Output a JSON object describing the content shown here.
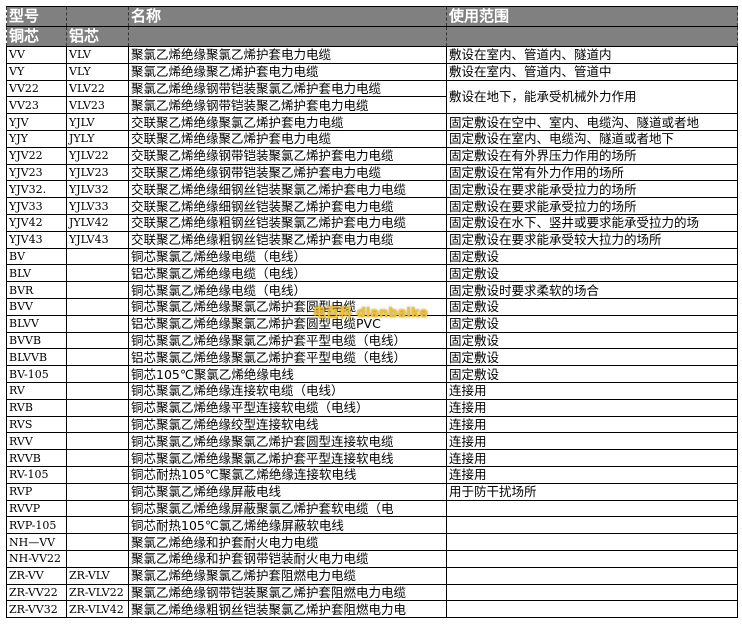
{
  "header": {
    "model": "型号",
    "name": "名称",
    "usage": "使用范围",
    "copper": "铜芯",
    "aluminum": "铝芯"
  },
  "watermark": "电百科 dianbaike",
  "rows": [
    {
      "cu": "VV",
      "al": "VLV",
      "name": "聚氯乙烯绝缘聚氯乙烯护套电力电缆",
      "use": "敷设在室内、管道内、隧道内"
    },
    {
      "cu": "VY",
      "al": "VLY",
      "name": "聚氯乙烯绝缘聚乙烯护套电力电缆",
      "use": "敷设在室内、管道内、管道中"
    },
    {
      "cu": "VV22",
      "al": "VLV22",
      "name": "聚氯乙烯绝缘钢带铠装聚氯乙烯护套电力电缆",
      "use": "敷设在地下，能承受机械外力作用",
      "span": 2
    },
    {
      "cu": "VV23",
      "al": "VLV23",
      "name": "聚氯乙烯绝缘钢带铠装聚乙烯护套电力电缆",
      "skip": true
    },
    {
      "cu": "YJV",
      "al": "YJLV",
      "name": "交联聚乙烯绝缘聚氯乙烯护套电力电缆",
      "use": "固定敷设在空中、室内、电缆沟、隧道或者地"
    },
    {
      "cu": "YJY",
      "al": "JYLY",
      "name": "交联聚乙烯绝缘聚乙烯护套电力电缆",
      "use": "固定敷设在室内、电缆沟、隧道或者地下"
    },
    {
      "cu": "YJV22",
      "al": "YJLV22",
      "name": "交联聚乙烯绝缘钢带铠装聚氯乙烯护套电力电缆",
      "use": "固定敷设在有外界压力作用的场所"
    },
    {
      "cu": "YJV23",
      "al": "YJLV23",
      "name": "交联聚乙烯绝缘钢带铠装聚乙烯护套电力电缆",
      "use": "固定敷设在常有外力作用的场所"
    },
    {
      "cu": "YJV32.",
      "al": "YJLV32",
      "name": "交联聚乙烯绝缘细钢丝铠装聚氯乙烯护套电力电缆",
      "use": "固定敷设在要求能承受拉力的场所"
    },
    {
      "cu": "YJV33",
      "al": "YJLV33",
      "name": "交联聚乙烯绝缘细钢丝铠装聚乙烯护套电力电缆",
      "use": "固定敷设在要求能承受拉力的场所"
    },
    {
      "cu": "YJV42",
      "al": "JYLV42",
      "name": "交联聚乙烯绝缘粗钢丝铠装聚氯乙烯护套电力电缆",
      "use": "固定敷设在水下、竖井或要求能承受拉力的场"
    },
    {
      "cu": "YJV43",
      "al": "YJLV43",
      "name": "交联聚乙烯绝缘粗钢丝铠装聚乙烯护套电力电缆",
      "use": "固定敷设在要求能承受较大拉力的场所"
    },
    {
      "cu": "BV",
      "al": "",
      "name": "铜芯聚氯乙烯绝缘电缆（电线）",
      "use": "固定敷设"
    },
    {
      "cu": "BLV",
      "al": "",
      "name": "铝芯聚氯乙烯绝缘电缆（电线）",
      "use": "固定敷设"
    },
    {
      "cu": "BVR",
      "al": "",
      "name": "铜芯聚氯乙烯绝缘电缆（电线）",
      "use": "固定敷设时要求柔软的场合"
    },
    {
      "cu": "BVV",
      "al": "",
      "name": "铜芯聚氯乙烯绝缘聚氯乙烯护套圆型电缆",
      "use": "固定敷设"
    },
    {
      "cu": "BLVV",
      "al": "",
      "name": "铝芯聚氯乙烯绝缘聚氯乙烯护套圆型电缆PVC",
      "use": "固定敷设"
    },
    {
      "cu": "BVVB",
      "al": "",
      "name": "铜芯聚氯乙烯绝缘聚氯乙烯护套平型电缆（电线）",
      "use": "固定敷设"
    },
    {
      "cu": "BLVVB",
      "al": "",
      "name": "铝芯聚氯乙烯绝缘聚氯乙烯护套平型电缆（电线）",
      "use": "固定敷设"
    },
    {
      "cu": "BV-105",
      "al": "",
      "name": "铜芯105℃聚氯乙烯绝缘电线",
      "use": "固定敷设"
    },
    {
      "cu": "RV",
      "al": "",
      "name": "铜芯聚氯乙烯绝缘连接软电缆（电线）",
      "use": "连接用"
    },
    {
      "cu": "RVB",
      "al": "",
      "name": "铜芯聚氯乙烯绝缘平型连接软电缆（电线）",
      "use": "连接用"
    },
    {
      "cu": "RVS",
      "al": "",
      "name": "铜芯聚氯乙烯绝缘绞型连接软电线",
      "use": "连接用"
    },
    {
      "cu": "RVV",
      "al": "",
      "name": "铜芯聚氯乙烯绝缘聚氯乙烯护套圆型连接软电缆",
      "use": "连接用"
    },
    {
      "cu": "RVVB",
      "al": "",
      "name": "铜芯聚氯乙烯绝缘聚氯乙烯护套平型连接软电线",
      "use": "连接用"
    },
    {
      "cu": "RV-105",
      "al": "",
      "name": "铜芯耐热105℃聚氯乙烯绝缘连接软电线",
      "use": "连接用"
    },
    {
      "cu": "RVP",
      "al": "",
      "name": "铜芯聚氯乙烯绝缘屏蔽电线",
      "use": "用于防干扰场所"
    },
    {
      "cu": "RVVP",
      "al": "",
      "name": "铜芯聚氯乙烯绝缘屏蔽聚氯乙烯护套软电缆（电",
      "use": ""
    },
    {
      "cu": "RVP-105",
      "al": "",
      "name": "铜芯耐热105℃氯乙烯绝缘屏蔽软电线",
      "use": ""
    },
    {
      "cu": "NH—VV",
      "al": "",
      "name": "聚氯乙烯绝缘和护套耐火电力电缆",
      "use": ""
    },
    {
      "cu": "NH-VV22",
      "al": "",
      "name": "聚氯乙烯绝缘和护套钢带铠装耐火电力电缆",
      "use": ""
    },
    {
      "cu": "ZR-VV",
      "al": "ZR-VLV",
      "name": "聚氯乙烯绝缘聚氯乙烯护套阻燃电力电缆",
      "use": ""
    },
    {
      "cu": "ZR-VV22",
      "al": "ZR-VLV22",
      "name": "聚氯乙烯绝缘钢带铠装聚氯乙烯护套阻燃电力电缆",
      "use": ""
    },
    {
      "cu": "ZR-VV32",
      "al": "ZR-VLV42",
      "name": "聚氯乙烯绝缘粗钢丝铠装聚氯乙烯护套阻燃电力电",
      "use": ""
    }
  ]
}
